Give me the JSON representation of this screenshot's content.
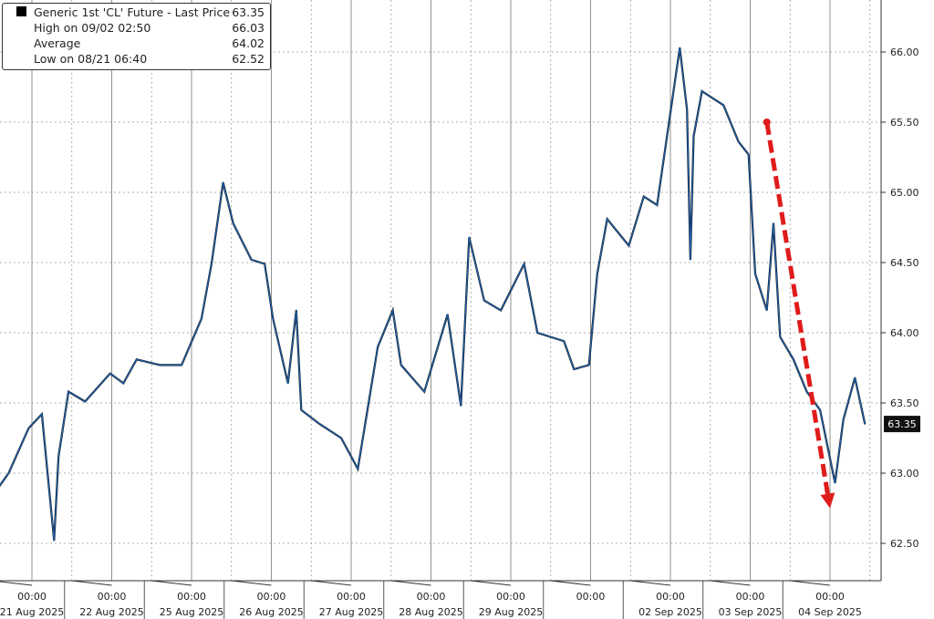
{
  "chart_data": {
    "type": "line",
    "legend": {
      "placement": "top-left",
      "entries": [
        {
          "label": "Generic 1st 'CL' Future - Last Price",
          "value": "63.35"
        },
        {
          "label": "High on 09/02 02:50",
          "value": "66.03"
        },
        {
          "label": "Average",
          "value": "64.02"
        },
        {
          "label": "Low on 08/21 06:40",
          "value": "62.52"
        }
      ]
    },
    "ylim": [
      62.2,
      66.4
    ],
    "y_ticks": [
      "62.50",
      "63.00",
      "63.50",
      "64.00",
      "64.50",
      "65.00",
      "65.50",
      "66.00"
    ],
    "last_price_tag": "63.35",
    "x_ticks": [
      {
        "time": "00:00",
        "date": "21 Aug 2025"
      },
      {
        "time": "00:00",
        "date": "22 Aug 2025"
      },
      {
        "time": "00:00",
        "date": "25 Aug 2025"
      },
      {
        "time": "00:00",
        "date": "26 Aug 2025"
      },
      {
        "time": "00:00",
        "date": "27 Aug 2025"
      },
      {
        "time": "00:00",
        "date": "28 Aug 2025"
      },
      {
        "time": "00:00",
        "date": "29 Aug 2025"
      },
      {
        "time": "00:00",
        "date": ""
      },
      {
        "time": "00:00",
        "date": "02 Sep 2025"
      },
      {
        "time": "00:00",
        "date": "03 Sep 2025"
      },
      {
        "time": "00:00",
        "date": "04 Sep 2025"
      }
    ],
    "grid": true,
    "series_color": "#1f5fa8",
    "annotation_color": "#e01b1b",
    "series": [
      {
        "points": [
          [
            "08/20 14:00",
            62.9
          ],
          [
            "08/20 17:00",
            63.0
          ],
          [
            "08/20 23:00",
            63.32
          ],
          [
            "08/21 03:00",
            63.42
          ],
          [
            "08/21 06:40",
            62.52
          ],
          [
            "08/21 08:00",
            63.12
          ],
          [
            "08/21 11:00",
            63.58
          ],
          [
            "08/21 16:00",
            63.51
          ],
          [
            "08/21 23:30",
            63.71
          ],
          [
            "08/22 03:30",
            63.64
          ],
          [
            "08/22 07:30",
            63.81
          ],
          [
            "08/22 14:30",
            63.77
          ],
          [
            "08/22 21:00",
            63.77
          ],
          [
            "08/25 03:00",
            64.1
          ],
          [
            "08/25 06:00",
            64.49
          ],
          [
            "08/25 09:30",
            65.07
          ],
          [
            "08/25 12:30",
            64.78
          ],
          [
            "08/25 18:00",
            64.52
          ],
          [
            "08/25 22:00",
            64.49
          ],
          [
            "08/26 00:30",
            64.1
          ],
          [
            "08/26 05:00",
            63.64
          ],
          [
            "08/26 07:30",
            64.16
          ],
          [
            "08/26 09:00",
            63.45
          ],
          [
            "08/26 14:30",
            63.35
          ],
          [
            "08/26 21:00",
            63.25
          ],
          [
            "08/27 02:00",
            63.03
          ],
          [
            "08/27 04:00",
            63.32
          ],
          [
            "08/27 08:00",
            63.9
          ],
          [
            "08/27 12:30",
            64.16
          ],
          [
            "08/27 15:00",
            63.77
          ],
          [
            "08/27 22:00",
            63.58
          ],
          [
            "08/28 05:00",
            64.13
          ],
          [
            "08/28 09:00",
            63.48
          ],
          [
            "08/28 11:30",
            64.68
          ],
          [
            "08/28 16:00",
            64.23
          ],
          [
            "08/28 21:00",
            64.16
          ],
          [
            "08/29 04:00",
            64.49
          ],
          [
            "08/29 08:00",
            64.0
          ],
          [
            "08/29 16:00",
            63.94
          ],
          [
            "08/29 19:00",
            63.74
          ],
          [
            "08/29 23:30",
            63.77
          ],
          [
            "09/01 02:00",
            64.42
          ],
          [
            "09/01 05:00",
            64.81
          ],
          [
            "09/01 11:30",
            64.62
          ],
          [
            "09/01 16:00",
            64.97
          ],
          [
            "09/01 20:00",
            64.91
          ],
          [
            "09/02 02:50",
            66.03
          ],
          [
            "09/02 05:00",
            65.59
          ],
          [
            "09/02 06:00",
            64.52
          ],
          [
            "09/02 07:00",
            65.4
          ],
          [
            "09/02 09:30",
            65.72
          ],
          [
            "09/02 16:00",
            65.62
          ],
          [
            "09/02 20:30",
            65.36
          ],
          [
            "09/02 23:30",
            65.27
          ],
          [
            "09/03 01:30",
            64.42
          ],
          [
            "09/03 05:00",
            64.16
          ],
          [
            "09/03 07:00",
            64.78
          ],
          [
            "09/03 09:00",
            63.97
          ],
          [
            "09/03 13:00",
            63.81
          ],
          [
            "09/03 17:00",
            63.58
          ],
          [
            "09/03 21:00",
            63.45
          ],
          [
            "09/04 01:30",
            62.93
          ],
          [
            "09/04 04:00",
            63.38
          ],
          [
            "09/04 07:30",
            63.68
          ],
          [
            "09/04 10:30",
            63.35
          ]
        ]
      }
    ],
    "annotations": [
      {
        "type": "arrow",
        "style": "dashed",
        "from": [
          "09/03 05:00",
          65.5
        ],
        "to": [
          "09/04 00:00",
          62.75
        ]
      }
    ]
  }
}
